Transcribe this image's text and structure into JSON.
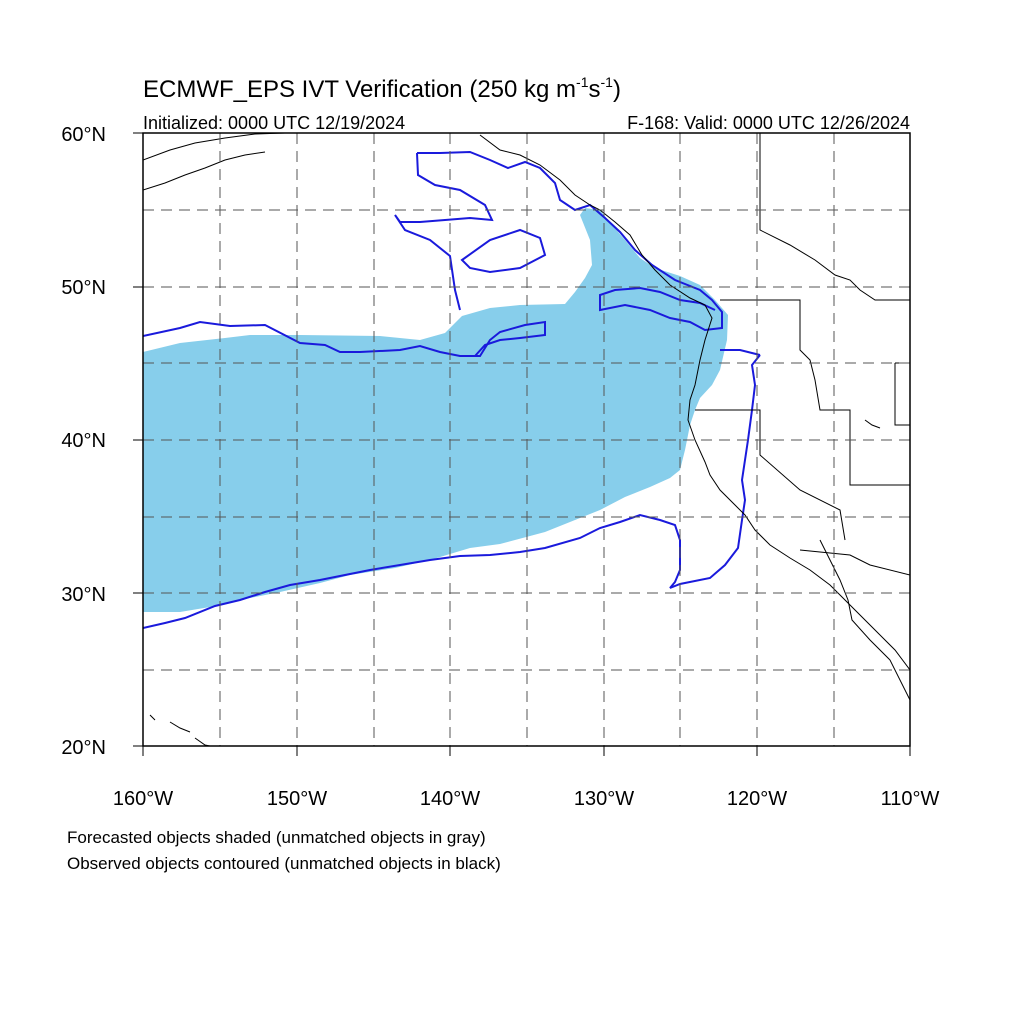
{
  "title": {
    "prefix": "ECMWF_EPS IVT Verification (250 kg m",
    "exp1": "-1",
    "mid": "s",
    "exp2": "-1",
    "suffix": ")"
  },
  "subtitle_left": "Initialized: 0000 UTC 12/19/2024",
  "subtitle_right": "F-168: Valid: 0000 UTC 12/26/2024",
  "footer": {
    "line1": "Forecasted objects shaded (unmatched objects in gray)",
    "line2": "Observed objects contoured (unmatched objects in black)"
  },
  "colors": {
    "forecast_fill": "#87ceeb",
    "observed_contour": "#1a1adc",
    "coastline": "#000000",
    "grid": "#555555"
  },
  "map": {
    "lon_range": [
      -160,
      -110
    ],
    "lat_range": [
      20,
      60
    ],
    "grid_lines": "dashed every 5 degrees",
    "lon_labels": [
      "160°W",
      "150°W",
      "140°W",
      "130°W",
      "120°W",
      "110°W"
    ],
    "lat_labels": [
      "20°N",
      "30°N",
      "40°N",
      "50°N",
      "60°N"
    ]
  }
}
